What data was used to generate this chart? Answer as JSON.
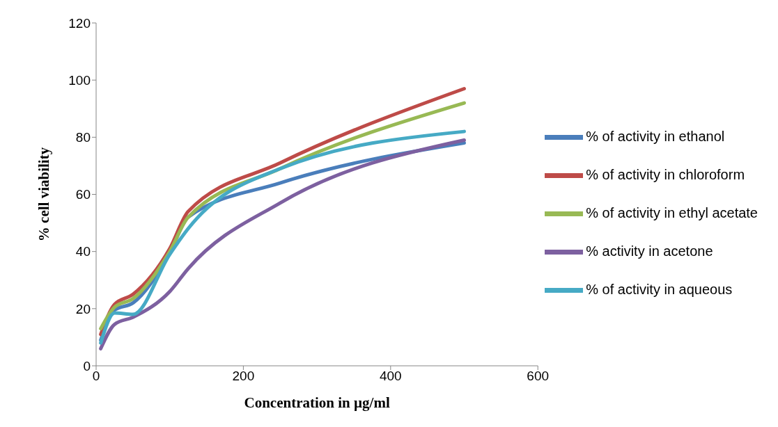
{
  "chart_data": {
    "type": "line",
    "xlabel": "Concentration in µg/ml",
    "ylabel": "% cell viability",
    "x": [
      6.25,
      25,
      50,
      100,
      125,
      250,
      500
    ],
    "series": [
      {
        "name": "% of activity in ethanol",
        "color": "#4a7ebb",
        "values": [
          9,
          19.5,
          22,
          39.5,
          52,
          64,
          78
        ]
      },
      {
        "name": "% of activity in chloroform",
        "color": "#be4b48",
        "values": [
          11,
          21.5,
          25,
          41,
          54,
          71,
          97
        ]
      },
      {
        "name": "% of activity in ethyl acetate",
        "color": "#98b954",
        "values": [
          13,
          20.5,
          23.5,
          40,
          52,
          69,
          92
        ]
      },
      {
        "name": "% activity in acetone",
        "color": "#7d60a0",
        "values": [
          6,
          14.5,
          17,
          26,
          34,
          57,
          79
        ]
      },
      {
        "name": "% of activity in aqueous",
        "color": "#46aac5",
        "values": [
          8,
          18.5,
          18,
          39,
          48,
          69,
          82
        ]
      }
    ],
    "xlim": [
      0,
      600
    ],
    "xticks": [
      0,
      200,
      400,
      600
    ],
    "ylim": [
      0,
      120
    ],
    "yticks": [
      0,
      20,
      40,
      60,
      80,
      100,
      120
    ],
    "grid": false,
    "legend": "right",
    "marker": "none",
    "line_style": "solid"
  }
}
